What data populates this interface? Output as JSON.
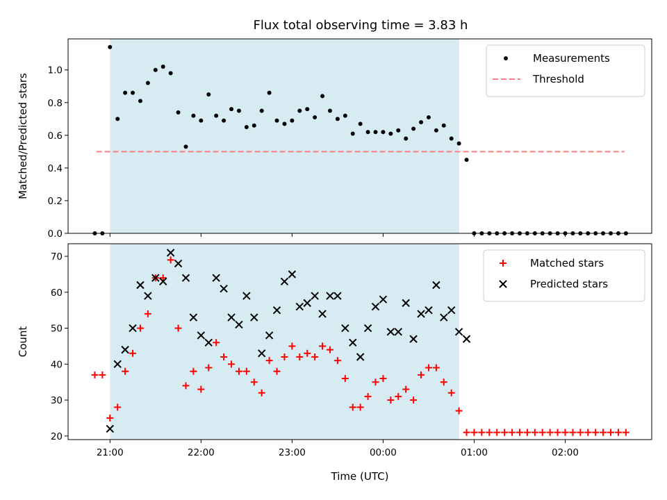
{
  "title": "Flux total observing time = 3.83 h",
  "xlabel": "Time (UTC)",
  "x_ticks": [
    "21:00",
    "22:00",
    "23:00",
    "00:00",
    "01:00",
    "02:00"
  ],
  "x_tick_hours": [
    0,
    1,
    2,
    3,
    4,
    5
  ],
  "x_axis_origin": "21:00",
  "shaded_interval": {
    "start": "21:00",
    "end": "00:50",
    "color": "#add8e6"
  },
  "chart_data": [
    {
      "type": "scatter",
      "ylabel": "Matched/Predicted stars",
      "ylim": [
        0,
        1.19
      ],
      "yticks": [
        0.0,
        0.2,
        0.4,
        0.6,
        0.8,
        1.0
      ],
      "ytick_labels": [
        "0.0",
        "0.2",
        "0.4",
        "0.6",
        "0.8",
        "1.0"
      ],
      "legend_position": "upper right",
      "threshold": {
        "name": "Threshold",
        "y": 0.5,
        "color": "#ff7f7f"
      },
      "series": [
        {
          "name": "Measurements",
          "marker": "dot",
          "color": "#000000",
          "x": [
            "20:50",
            "20:55",
            "21:00",
            "21:05",
            "21:10",
            "21:15",
            "21:20",
            "21:25",
            "21:30",
            "21:35",
            "21:40",
            "21:45",
            "21:50",
            "21:55",
            "22:00",
            "22:05",
            "22:10",
            "22:15",
            "22:20",
            "22:25",
            "22:30",
            "22:35",
            "22:40",
            "22:45",
            "22:50",
            "22:55",
            "23:00",
            "23:05",
            "23:10",
            "23:15",
            "23:20",
            "23:25",
            "23:30",
            "23:35",
            "23:40",
            "23:45",
            "23:50",
            "23:55",
            "00:00",
            "00:05",
            "00:10",
            "00:15",
            "00:20",
            "00:25",
            "00:30",
            "00:35",
            "00:40",
            "00:45",
            "00:50",
            "00:55",
            "01:00",
            "01:05",
            "01:10",
            "01:15",
            "01:20",
            "01:25",
            "01:30",
            "01:35",
            "01:40",
            "01:45",
            "01:50",
            "01:55",
            "02:00",
            "02:05",
            "02:10",
            "02:15",
            "02:20",
            "02:25",
            "02:30",
            "02:35",
            "02:40"
          ],
          "y": [
            0.0,
            0.0,
            1.14,
            0.7,
            0.86,
            0.86,
            0.81,
            0.92,
            1.0,
            1.02,
            0.98,
            0.74,
            0.53,
            0.72,
            0.69,
            0.85,
            0.72,
            0.69,
            0.76,
            0.75,
            0.65,
            0.66,
            0.75,
            0.86,
            0.69,
            0.67,
            0.69,
            0.75,
            0.76,
            0.71,
            0.84,
            0.75,
            0.7,
            0.72,
            0.61,
            0.67,
            0.62,
            0.62,
            0.62,
            0.61,
            0.63,
            0.58,
            0.64,
            0.68,
            0.71,
            0.63,
            0.66,
            0.58,
            0.55,
            0.45,
            0.0,
            0.0,
            0.0,
            0.0,
            0.0,
            0.0,
            0.0,
            0.0,
            0.0,
            0.0,
            0.0,
            0.0,
            0.0,
            0.0,
            0.0,
            0.0,
            0.0,
            0.0,
            0.0,
            0.0,
            0.0
          ]
        }
      ]
    },
    {
      "type": "scatter",
      "ylabel": "Count",
      "ylim": [
        19,
        73.5
      ],
      "yticks": [
        20,
        30,
        40,
        50,
        60,
        70
      ],
      "ytick_labels": [
        "20",
        "30",
        "40",
        "50",
        "60",
        "70"
      ],
      "legend_position": "upper right",
      "series": [
        {
          "name": "Matched stars",
          "marker": "plus",
          "color": "#ff0000",
          "x": [
            "20:50",
            "20:55",
            "21:00",
            "21:05",
            "21:10",
            "21:15",
            "21:20",
            "21:25",
            "21:30",
            "21:35",
            "21:40",
            "21:45",
            "21:50",
            "21:55",
            "22:00",
            "22:05",
            "22:10",
            "22:15",
            "22:20",
            "22:25",
            "22:30",
            "22:35",
            "22:40",
            "22:45",
            "22:50",
            "22:55",
            "23:00",
            "23:05",
            "23:10",
            "23:15",
            "23:20",
            "23:25",
            "23:30",
            "23:35",
            "23:40",
            "23:45",
            "23:50",
            "23:55",
            "00:00",
            "00:05",
            "00:10",
            "00:15",
            "00:20",
            "00:25",
            "00:30",
            "00:35",
            "00:40",
            "00:45",
            "00:50",
            "00:55",
            "01:00",
            "01:05",
            "01:10",
            "01:15",
            "01:20",
            "01:25",
            "01:30",
            "01:35",
            "01:40",
            "01:45",
            "01:50",
            "01:55",
            "02:00",
            "02:05",
            "02:10",
            "02:15",
            "02:20",
            "02:25",
            "02:30",
            "02:35",
            "02:40"
          ],
          "y": [
            37,
            37,
            25,
            28,
            38,
            43,
            50,
            54,
            64,
            64,
            69,
            50,
            34,
            38,
            33,
            39,
            46,
            42,
            40,
            38,
            38,
            35,
            32,
            41,
            38,
            42,
            45,
            42,
            43,
            42,
            45,
            44,
            41,
            36,
            28,
            28,
            31,
            35,
            36,
            30,
            31,
            33,
            30,
            37,
            39,
            39,
            35,
            32,
            27,
            21,
            21,
            21,
            21,
            21,
            21,
            21,
            21,
            21,
            21,
            21,
            21,
            21,
            21,
            21,
            21,
            21,
            21,
            21,
            21,
            21,
            21
          ]
        },
        {
          "name": "Predicted stars",
          "marker": "x",
          "color": "#000000",
          "x": [
            "21:00",
            "21:05",
            "21:10",
            "21:15",
            "21:20",
            "21:25",
            "21:30",
            "21:35",
            "21:40",
            "21:45",
            "21:50",
            "21:55",
            "22:00",
            "22:05",
            "22:10",
            "22:15",
            "22:20",
            "22:25",
            "22:30",
            "22:35",
            "22:40",
            "22:45",
            "22:50",
            "22:55",
            "23:00",
            "23:05",
            "23:10",
            "23:15",
            "23:20",
            "23:25",
            "23:30",
            "23:35",
            "23:40",
            "23:45",
            "23:50",
            "23:55",
            "00:00",
            "00:05",
            "00:10",
            "00:15",
            "00:20",
            "00:25",
            "00:30",
            "00:35",
            "00:40",
            "00:45",
            "00:50",
            "00:55"
          ],
          "y": [
            22,
            40,
            44,
            50,
            62,
            59,
            64,
            63,
            71,
            68,
            64,
            53,
            48,
            46,
            64,
            61,
            53,
            51,
            59,
            53,
            43,
            48,
            55,
            63,
            65,
            56,
            57,
            59,
            54,
            59,
            59,
            50,
            46,
            42,
            50,
            56,
            58,
            49,
            49,
            57,
            47,
            54,
            55,
            62,
            53,
            55,
            49,
            47
          ]
        }
      ]
    }
  ]
}
